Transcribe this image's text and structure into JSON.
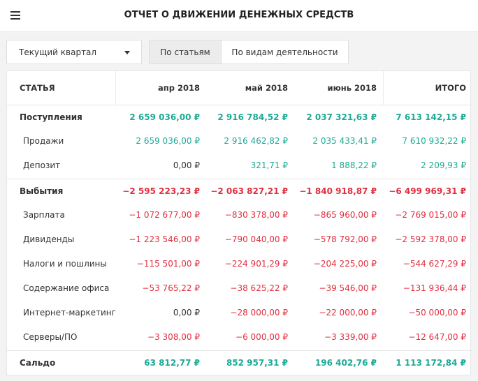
{
  "header": {
    "title": "ОТЧЕТ О ДВИЖЕНИИ ДЕНЕЖНЫХ СРЕДСТВ"
  },
  "filters": {
    "period": "Текущий квартал",
    "group_by": {
      "active": "По статьям",
      "inactive": "По видам деятельности"
    }
  },
  "colors": {
    "positive": "#1eaa94",
    "negative": "#e02f3f",
    "text": "#333333"
  },
  "table": {
    "columns": [
      "СТАТЬЯ",
      "апр 2018",
      "май 2018",
      "июнь 2018",
      "ИТОГО"
    ],
    "rows": [
      {
        "label": "Поступления",
        "kind": "group",
        "tone": "pos",
        "values": [
          "2 659 036,00 ₽",
          "2 916 784,52 ₽",
          "2 037 321,63 ₽",
          "7 613 142,15 ₽"
        ]
      },
      {
        "label": "Продажи",
        "kind": "item",
        "tone": "pos",
        "values": [
          "2 659 036,00 ₽",
          "2 916 462,82 ₽",
          "2 035 433,41 ₽",
          "7 610 932,22 ₽"
        ]
      },
      {
        "label": "Депозит",
        "kind": "item",
        "tone": "pos",
        "values": [
          "0,00 ₽",
          "321,71 ₽",
          "1 888,22 ₽",
          "2 209,93 ₽"
        ]
      },
      {
        "label": "Выбытия",
        "kind": "group",
        "tone": "neg",
        "values": [
          "−2 595 223,23 ₽",
          "−2 063 827,21 ₽",
          "−1 840 918,87 ₽",
          "−6 499 969,31 ₽"
        ]
      },
      {
        "label": "Зарплата",
        "kind": "item",
        "tone": "neg",
        "values": [
          "−1 072 677,00 ₽",
          "−830 378,00 ₽",
          "−865 960,00 ₽",
          "−2 769 015,00 ₽"
        ]
      },
      {
        "label": "Дивиденды",
        "kind": "item",
        "tone": "neg",
        "values": [
          "−1 223 546,00 ₽",
          "−790 040,00 ₽",
          "−578 792,00 ₽",
          "−2 592 378,00 ₽"
        ]
      },
      {
        "label": "Налоги и пошлины",
        "kind": "item",
        "tone": "neg",
        "values": [
          "−115 501,00 ₽",
          "−224 901,29 ₽",
          "−204 225,00 ₽",
          "−544 627,29 ₽"
        ]
      },
      {
        "label": "Содержание офиса",
        "kind": "item",
        "tone": "neg",
        "values": [
          "−53 765,22 ₽",
          "−38 625,22 ₽",
          "−39 546,00 ₽",
          "−131 936,44 ₽"
        ]
      },
      {
        "label": "Интернет-маркетинг",
        "kind": "item",
        "tone": "neg",
        "values": [
          "0,00 ₽",
          "−28 000,00 ₽",
          "−22 000,00 ₽",
          "−50 000,00 ₽"
        ]
      },
      {
        "label": "Серверы/ПО",
        "kind": "item",
        "tone": "neg",
        "values": [
          "−3 308,00 ₽",
          "−6 000,00 ₽",
          "−3 339,00 ₽",
          "−12 647,00 ₽"
        ]
      },
      {
        "label": "Сальдо",
        "kind": "total",
        "tone": "pos",
        "values": [
          "63 812,77 ₽",
          "852 957,31 ₽",
          "196 402,76 ₽",
          "1 113 172,84 ₽"
        ]
      }
    ]
  }
}
